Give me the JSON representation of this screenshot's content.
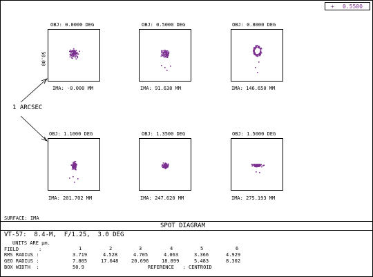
{
  "header": {
    "wavelength_marker": "+",
    "wavelength": "0.5500"
  },
  "chart_data": {
    "type": "scatter",
    "title": "SPOT DIAGRAM",
    "box_scale_label": "50.00",
    "surface_label": "SURFACE: IMA",
    "annotation": "1 ARCSEC",
    "spot_color": "#7b2f8f",
    "plots": [
      {
        "obj": "OBJ: 0.0000 DEG",
        "ima": "IMA: -0.000 MM",
        "shape": "round"
      },
      {
        "obj": "OBJ: 0.5000 DEG",
        "ima": "IMA: 91.638 MM",
        "shape": "round_tail"
      },
      {
        "obj": "OBJ: 0.8000 DEG",
        "ima": "IMA: 146.650 MM",
        "shape": "ring_tail"
      },
      {
        "obj": "OBJ: 1.1000 DEG",
        "ima": "IMA: 201.702 MM",
        "shape": "oval_tail"
      },
      {
        "obj": "OBJ: 1.3500 DEG",
        "ima": "IMA: 247.620 MM",
        "shape": "compact"
      },
      {
        "obj": "OBJ: 1.5000 DEG",
        "ima": "IMA: 275.193 MM",
        "shape": "fan"
      }
    ],
    "table": {
      "title": "VT-57:  8.4-M,  F/1.25,  3.0 DEG",
      "units": "UNITS ARE µm.",
      "field_label": "FIELD",
      "fields": [
        "1",
        "2",
        "3",
        "4",
        "5",
        "6"
      ],
      "rms_label": "RMS RADIUS :",
      "rms_radius": [
        3.719,
        4.528,
        4.705,
        4.063,
        3.366,
        4.929
      ],
      "geo_label": "GEO RADIUS :",
      "geo_radius": [
        7.805,
        17.648,
        20.696,
        18.899,
        5.483,
        8.302
      ],
      "box_width_label": "BOX WIDTH  :",
      "box_width": "50.9",
      "reference_label": "REFERENCE   : CENTROID"
    }
  }
}
